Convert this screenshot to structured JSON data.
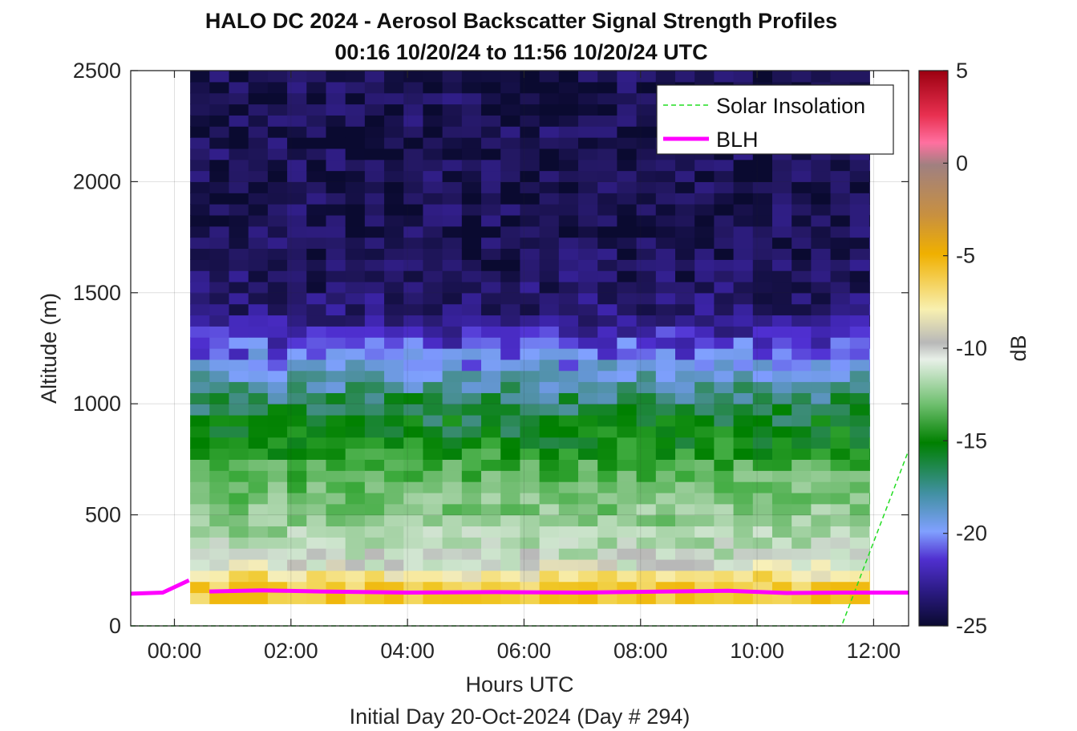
{
  "chart_data": {
    "type": "heatmap",
    "title": "HALO DC 2024 - Aerosol Backscatter Signal Strength Profiles",
    "subtitle": "00:16 10/20/24 to 11:56 10/20/24  UTC",
    "xlabel": "Hours UTC",
    "ylabel": "Altitude (m)",
    "footer": "Initial Day 20-Oct-2024 (Day # 294)",
    "xlim": [
      -0.75,
      12.6
    ],
    "ylim": [
      0,
      2500
    ],
    "x_ticks": [
      0,
      2,
      4,
      6,
      8,
      10,
      12
    ],
    "x_tick_labels": [
      "00:00",
      "02:00",
      "04:00",
      "06:00",
      "08:00",
      "10:00",
      "12:00"
    ],
    "y_ticks": [
      0,
      500,
      1000,
      1500,
      2000,
      2500
    ],
    "y_tick_labels": [
      "0",
      "500",
      "1000",
      "1500",
      "2000",
      "2500"
    ],
    "grid": true,
    "data_time_range": [
      0.27,
      11.93
    ],
    "altitude_bin_m": 50,
    "time_step_h": 0.333,
    "value_profile_db": {
      "altitudes_m": [
        100,
        150,
        200,
        250,
        300,
        400,
        550,
        700,
        850,
        1000,
        1100,
        1200,
        1300,
        1400,
        1500,
        1700,
        2000,
        2500
      ],
      "values_db": [
        -7,
        -6.5,
        -7.5,
        -9.5,
        -11,
        -12,
        -13,
        -14,
        -16,
        -17,
        -18.5,
        -20,
        -21.5,
        -23,
        -23.5,
        -24,
        -24,
        -24
      ]
    },
    "colorbar": {
      "label": "dB",
      "min": -25,
      "max": 5,
      "ticks": [
        5,
        0,
        -5,
        -10,
        -15,
        -20,
        -25
      ],
      "tick_labels": [
        "5",
        "0",
        "-5",
        "-10",
        "-15",
        "-20",
        "-25"
      ]
    },
    "series": [
      {
        "name": "Solar Insolation",
        "style": "dashed",
        "color": "#22dd22",
        "x": [
          -0.75,
          11.45,
          12.6
        ],
        "y": [
          0,
          0,
          790
        ]
      },
      {
        "name": "BLH",
        "style": "solid",
        "color": "#ff00ff",
        "x": [
          -0.75,
          -0.2,
          0.25,
          null,
          0.6,
          1.5,
          2.5,
          4,
          5.5,
          7,
          8.5,
          9.5,
          10.5,
          11.5,
          12.6
        ],
        "y": [
          145,
          150,
          205,
          null,
          155,
          160,
          155,
          150,
          152,
          150,
          155,
          158,
          148,
          150,
          150
        ]
      }
    ],
    "legend": {
      "position": "top-right",
      "entries": [
        "Solar Insolation",
        "BLH"
      ]
    }
  }
}
